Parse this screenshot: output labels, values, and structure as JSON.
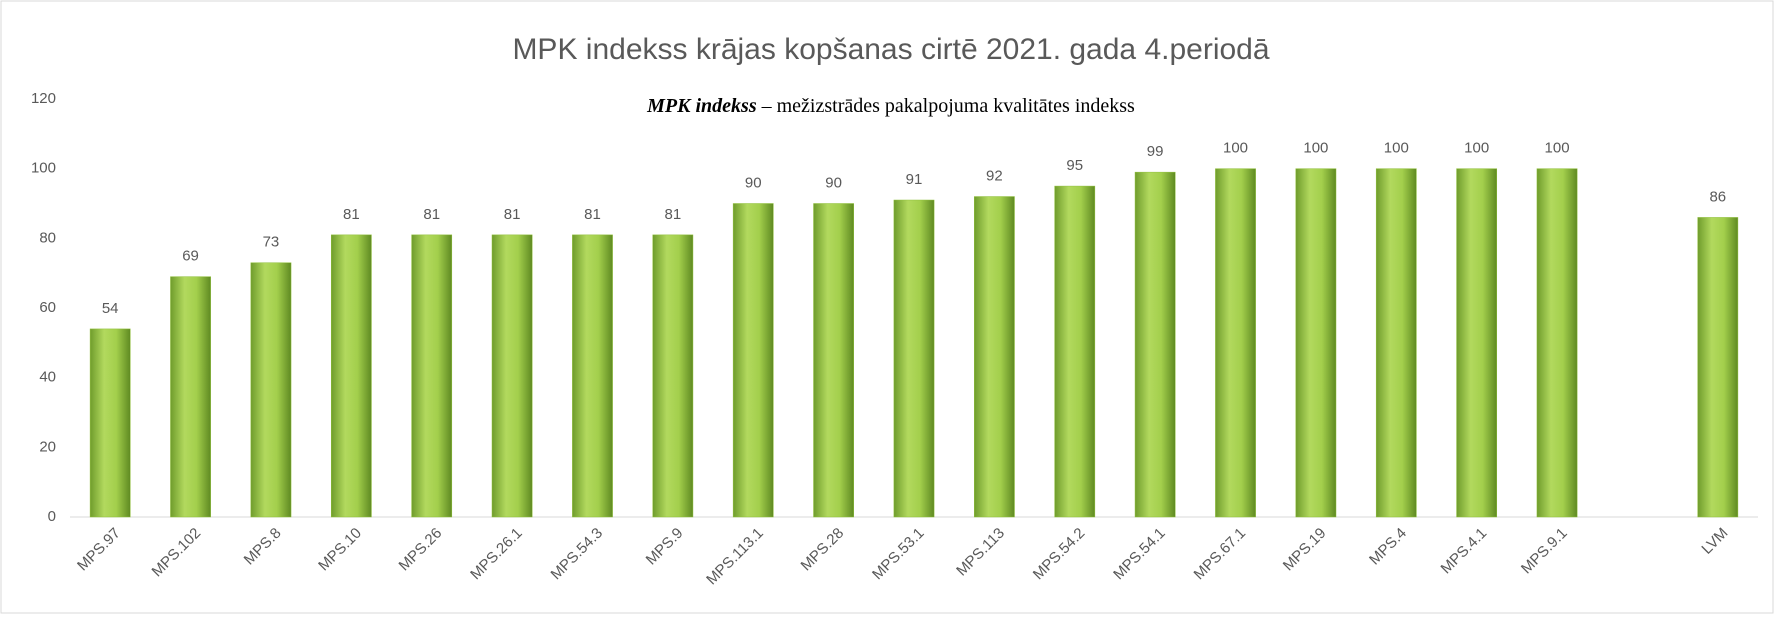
{
  "chart_data": {
    "type": "bar",
    "title": "MPK indekss krājas kopšanas cirtē 2021. gada 4.periodā",
    "subtitle": {
      "term": "MPK indekss",
      "definition": "– mežizstrādes pakalpojuma kvalitātes indekss"
    },
    "categories": [
      "MPS.97",
      "MPS.102",
      "MPS.8",
      "MPS.10",
      "MPS.26",
      "MPS.26.1",
      "MPS.54.3",
      "MPS.9",
      "MPS.113.1",
      "MPS.28",
      "MPS.53.1",
      "MPS.113",
      "MPS.54.2",
      "MPS.54.1",
      "MPS.67.1",
      "MPS.19",
      "MPS.4",
      "MPS.4.1",
      "MPS.9.1",
      null,
      "LVM"
    ],
    "values": [
      54,
      69,
      73,
      81,
      81,
      81,
      81,
      81,
      90,
      90,
      91,
      92,
      95,
      99,
      100,
      100,
      100,
      100,
      100,
      null,
      86
    ],
    "color": "#8fbf3a",
    "ylim": [
      0,
      120
    ],
    "yticks": [
      0,
      20,
      40,
      60,
      80,
      100,
      120
    ],
    "grid": false
  }
}
